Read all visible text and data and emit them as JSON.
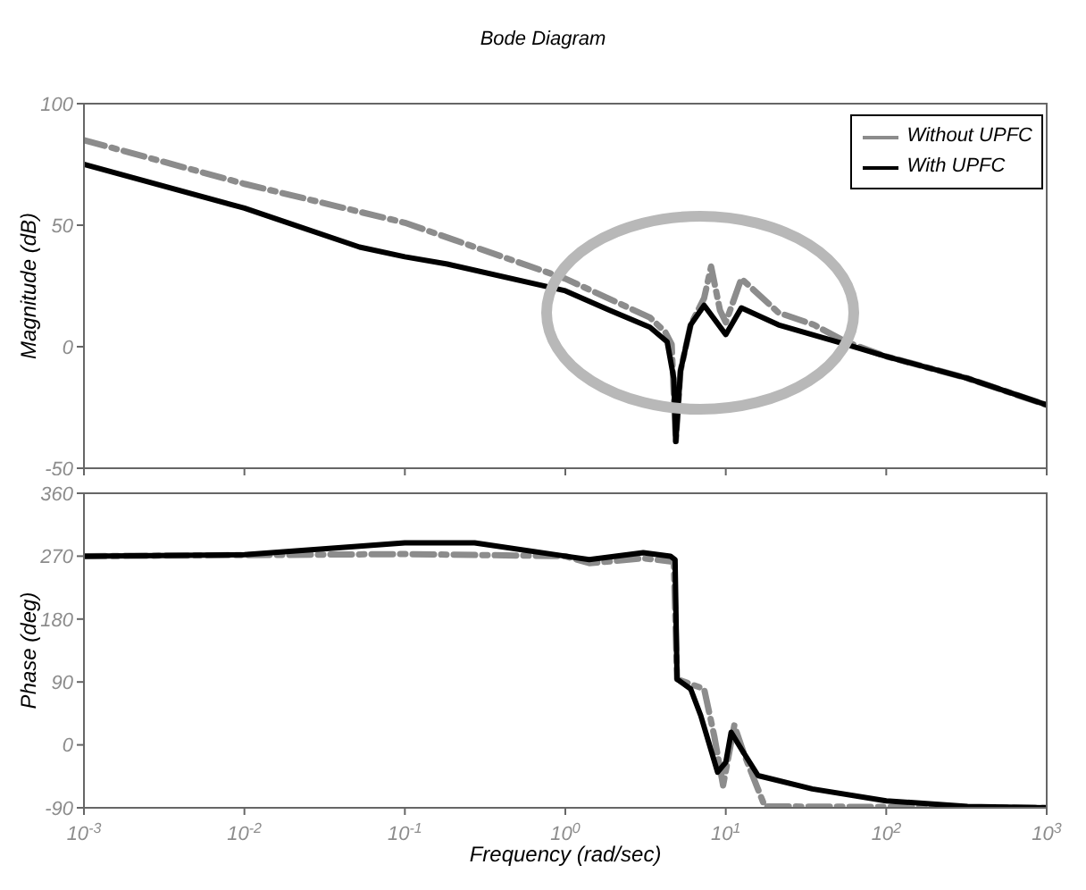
{
  "chart_data": [
    {
      "type": "line",
      "title": "Bode Diagram",
      "ylabel": "Magnitude (dB)",
      "log": "x",
      "grid": false,
      "legend": "top right",
      "tick_labels": "y",
      "xlim": [
        0.001,
        1000
      ],
      "xticks": [
        {
          "value": 0.001,
          "label": null
        },
        {
          "value": 0.01,
          "label": null
        },
        {
          "value": 0.1,
          "label": null
        },
        {
          "value": 1,
          "label": null
        },
        {
          "value": 10,
          "label": null
        },
        {
          "value": 100,
          "label": null
        },
        {
          "value": 1000,
          "label": null
        }
      ],
      "ylim": [
        -50,
        100
      ],
      "yticks": [
        -50,
        0,
        50,
        100
      ],
      "series": [
        {
          "name": "Without UPFC",
          "color": "#8c8c8c",
          "line_style": "dashed",
          "x": [
            0.001,
            0.01,
            0.1,
            1,
            3.37,
            4.2,
            4.6,
            4.88,
            5.22,
            6.04,
            7.33,
            8.1,
            9.2,
            10,
            12.5,
            21.3,
            35.5,
            56.1,
            100,
            321,
            1000
          ],
          "values": [
            85,
            67,
            51,
            28,
            12,
            6,
            1,
            -39,
            -10,
            9,
            20,
            33,
            15,
            10,
            28,
            14,
            9,
            2,
            -4,
            -13,
            -24
          ]
        },
        {
          "name": "With UPFC",
          "color": "#000000",
          "line_style": "solid",
          "x": [
            0.001,
            0.01,
            0.0522,
            0.1,
            0.184,
            1,
            1.89,
            3.37,
            4.31,
            4.74,
            4.88,
            5.22,
            6.04,
            7.33,
            10,
            12.5,
            21.3,
            56.1,
            100,
            321,
            1000
          ],
          "values": [
            75,
            57,
            41,
            37,
            34,
            23,
            15,
            8,
            2,
            -13,
            -39,
            -10,
            9,
            17,
            5,
            16,
            9,
            1,
            -4,
            -13,
            -24
          ]
        }
      ]
    },
    {
      "type": "line",
      "ylabel": "Phase (deg)",
      "xlabel": "Frequency (rad/sec)",
      "log": "x",
      "grid": false,
      "xlim": [
        0.001,
        1000
      ],
      "xticks": [
        {
          "value": 0.001,
          "label": "10$^{-3}$"
        },
        {
          "value": 0.01,
          "label": "10$^{-2}$"
        },
        {
          "value": 0.1,
          "label": "10$^{-1}$"
        },
        {
          "value": 1,
          "label": "10$^{0}$"
        },
        {
          "value": 10,
          "label": "10$^{1}$"
        },
        {
          "value": 100,
          "label": "10$^{2}$"
        },
        {
          "value": 1000,
          "label": "10$^{3}$"
        }
      ],
      "ylim": [
        -90,
        360
      ],
      "yticks": [
        -90,
        0,
        90,
        180,
        270,
        360
      ],
      "series": [
        {
          "color": "#8c8c8c",
          "line_style": "dashed",
          "x": [
            0.001,
            0.1,
            1,
            1.41,
            3.06,
            4.74,
            4.97,
            7.33,
            8.47,
            9.62,
            11.3,
            13.1,
            17.5,
            1000
          ],
          "values": [
            270,
            273,
            270,
            260,
            267,
            262,
            94,
            80,
            13,
            -58,
            28,
            -15,
            -88,
            -90
          ]
        },
        {
          "color": "#000000",
          "line_style": "solid",
          "x": [
            0.001,
            0.01,
            0.1,
            0.272,
            1,
            1.41,
            3.06,
            4.52,
            4.83,
            4.97,
            6.04,
            6.98,
            8.89,
            10,
            10.8,
            12.5,
            15.9,
            34.6,
            100,
            321,
            1000
          ],
          "values": [
            270,
            272,
            289,
            289,
            270,
            265,
            275,
            270,
            265,
            94,
            80,
            42,
            -39,
            -25,
            18,
            -6,
            -44,
            -63,
            -80,
            -88,
            -90
          ]
        }
      ]
    }
  ]
}
